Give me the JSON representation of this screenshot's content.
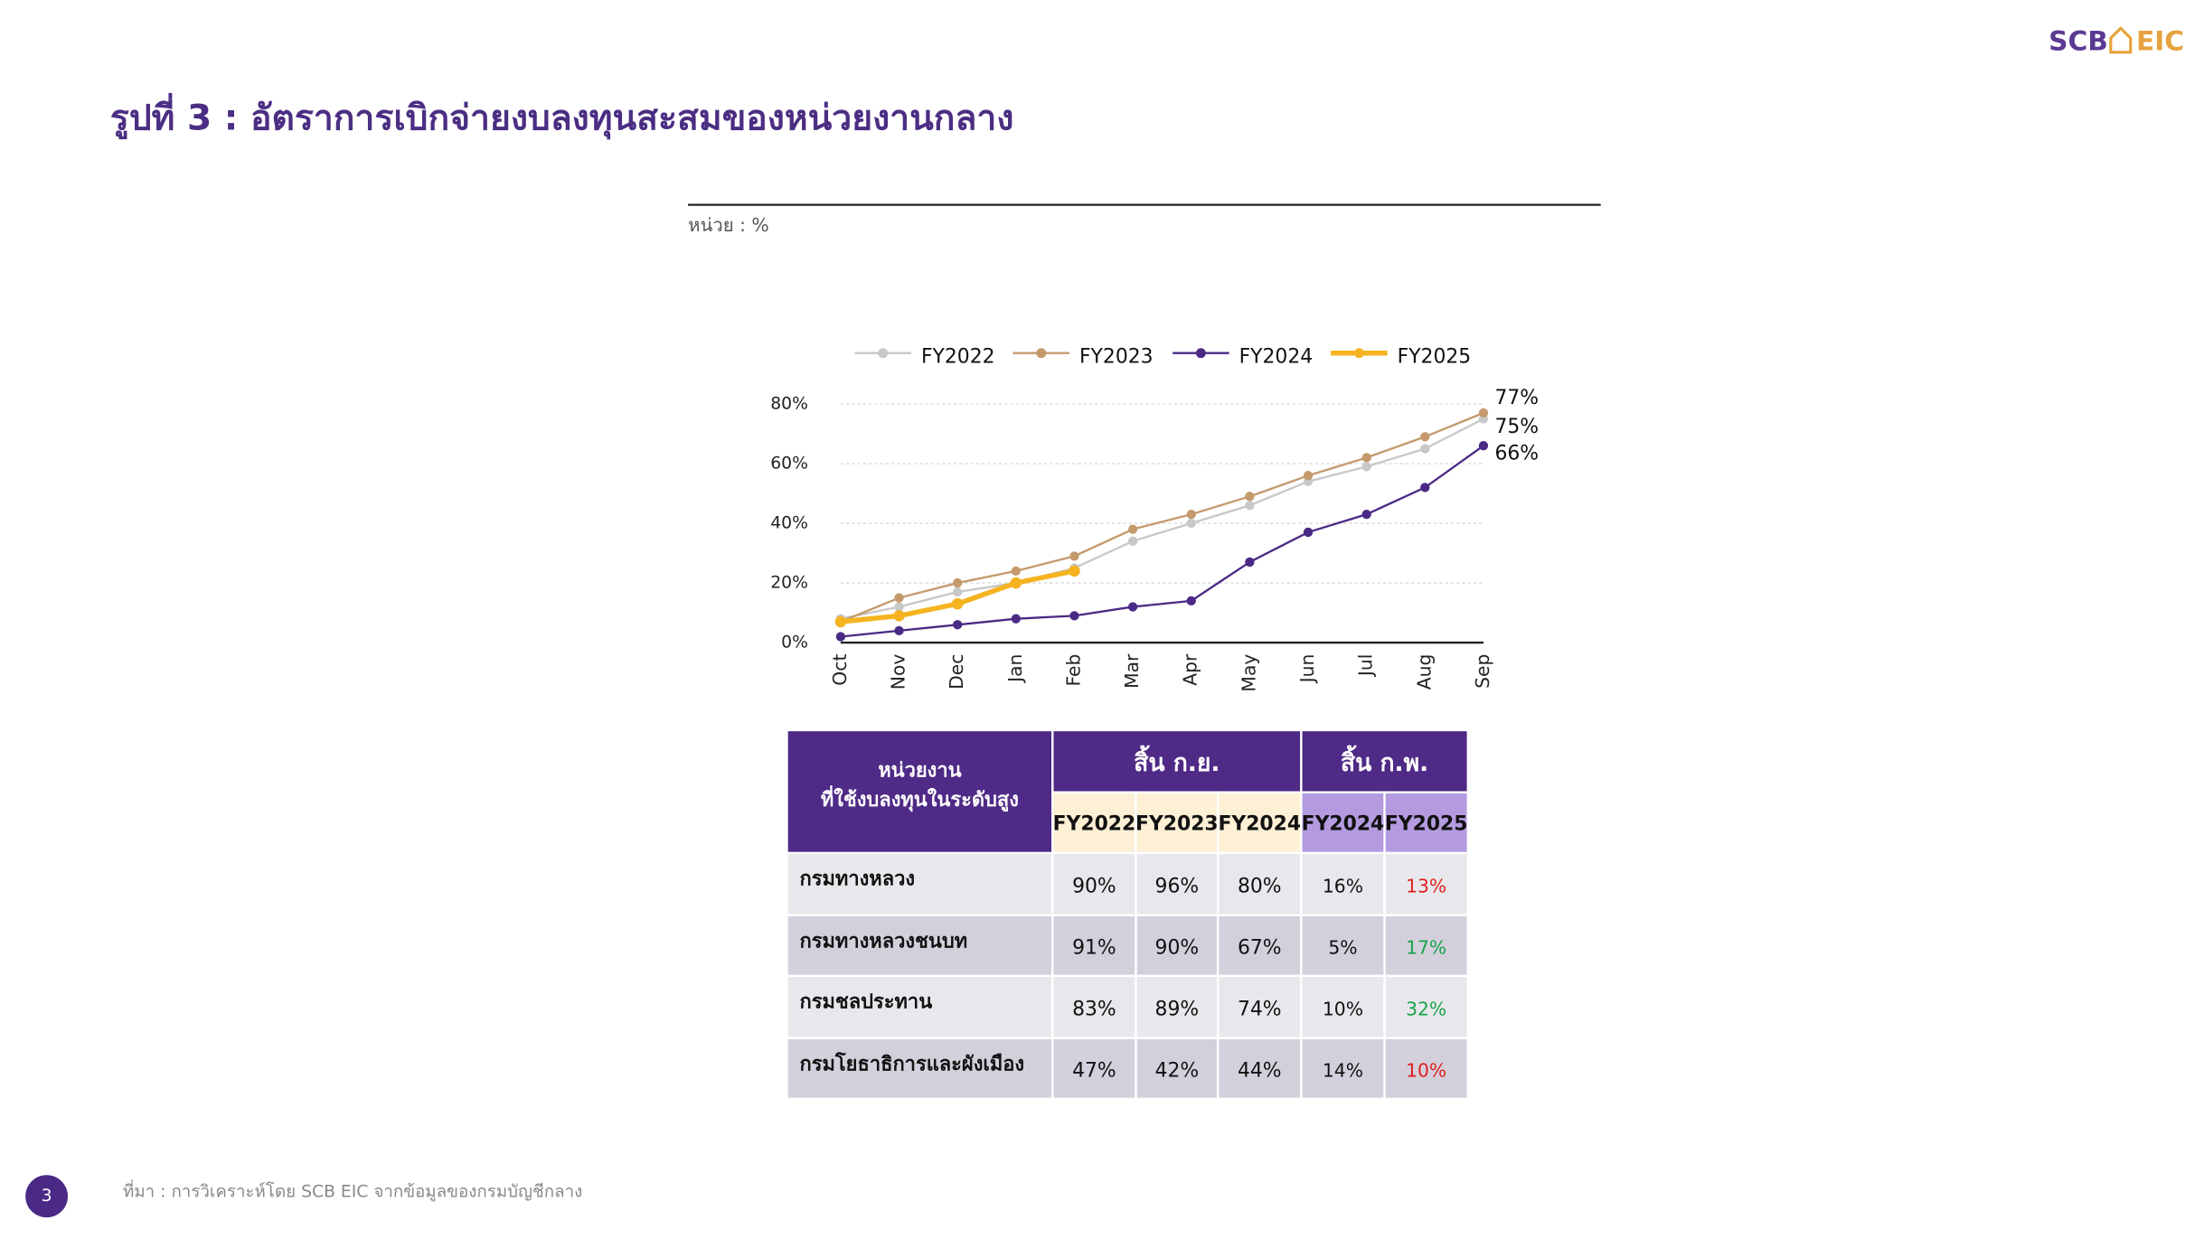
{
  "logo": {
    "left": "SCB",
    "right": "EIC"
  },
  "title": "รูปที่ 3 : อัตราการเบิกจ่ายงบลงทุนสะสมของหน่วยงานกลาง",
  "unit": "หน่วย : %",
  "chart_data": {
    "type": "line",
    "categories": [
      "Oct",
      "Nov",
      "Dec",
      "Jan",
      "Feb",
      "Mar",
      "Apr",
      "May",
      "Jun",
      "Jul",
      "Aug",
      "Sep"
    ],
    "series": [
      {
        "name": "FY2022",
        "color": "#c8c8c8",
        "line_width": 1.5,
        "values": [
          8,
          12,
          17,
          20,
          25,
          34,
          40,
          46,
          54,
          59,
          65,
          75
        ],
        "value_labels": [
          null,
          null,
          null,
          null,
          null,
          null,
          null,
          null,
          null,
          null,
          null,
          "75%"
        ]
      },
      {
        "name": "FY2023",
        "color": "#c49a6c",
        "line_width": 1.5,
        "values": [
          7,
          15,
          20,
          24,
          29,
          38,
          43,
          49,
          56,
          62,
          69,
          77
        ],
        "value_labels": [
          null,
          null,
          null,
          null,
          null,
          null,
          null,
          null,
          null,
          null,
          null,
          "77%"
        ]
      },
      {
        "name": "FY2024",
        "color": "#4b2a86",
        "line_width": 1.5,
        "values": [
          2,
          4,
          6,
          8,
          9,
          12,
          14,
          27,
          37,
          43,
          52,
          66
        ],
        "value_labels": [
          null,
          null,
          null,
          null,
          null,
          null,
          null,
          null,
          null,
          null,
          null,
          "66%"
        ]
      },
      {
        "name": "FY2025",
        "color": "#f5b320",
        "line_width": 3.5,
        "values": [
          7,
          9,
          13,
          20,
          24,
          null,
          null,
          null,
          null,
          null,
          null,
          null
        ]
      }
    ],
    "ylim": [
      0,
      80
    ],
    "yticks": [
      {
        "value": 0,
        "label": "0%"
      },
      {
        "value": 20,
        "label": "20%"
      },
      {
        "value": 40,
        "label": "40%"
      },
      {
        "value": 60,
        "label": "60%"
      },
      {
        "value": 80,
        "label": "80%"
      }
    ],
    "grid": true,
    "legend": "top"
  },
  "table": {
    "header": [
      "หน่วยงาน",
      "ที่ใช้งบลงทุนในระดับสูง"
    ],
    "groups": [
      "สิ้น ก.ย.",
      "สิ้น ก.พ."
    ],
    "columns": [
      "FY2022",
      "FY2023",
      "FY2024",
      "FY2024",
      "FY2025"
    ],
    "rows": [
      {
        "name": "กรมทางหลวง",
        "cells": [
          "90%",
          "96%",
          "80%",
          "16%",
          "13%"
        ],
        "highlight_color": "#e0201f"
      },
      {
        "name": "กรมทางหลวงชนบท",
        "cells": [
          "91%",
          "90%",
          "67%",
          "5%",
          "17%"
        ],
        "highlight_color": "#1aa34a"
      },
      {
        "name": "กรมชลประทาน",
        "cells": [
          "83%",
          "89%",
          "74%",
          "10%",
          "32%"
        ],
        "highlight_color": "#1aa34a"
      },
      {
        "name": "กรมโยธาธิการและผังเมือง",
        "cells": [
          "47%",
          "42%",
          "44%",
          "14%",
          "10%"
        ],
        "highlight_color": "#e0201f"
      }
    ]
  },
  "footer": {
    "page": "3",
    "source": "ที่มา : การวิเคราะห์โดย SCB EIC จากข้อมูลของกรมบัญชีกลาง"
  }
}
